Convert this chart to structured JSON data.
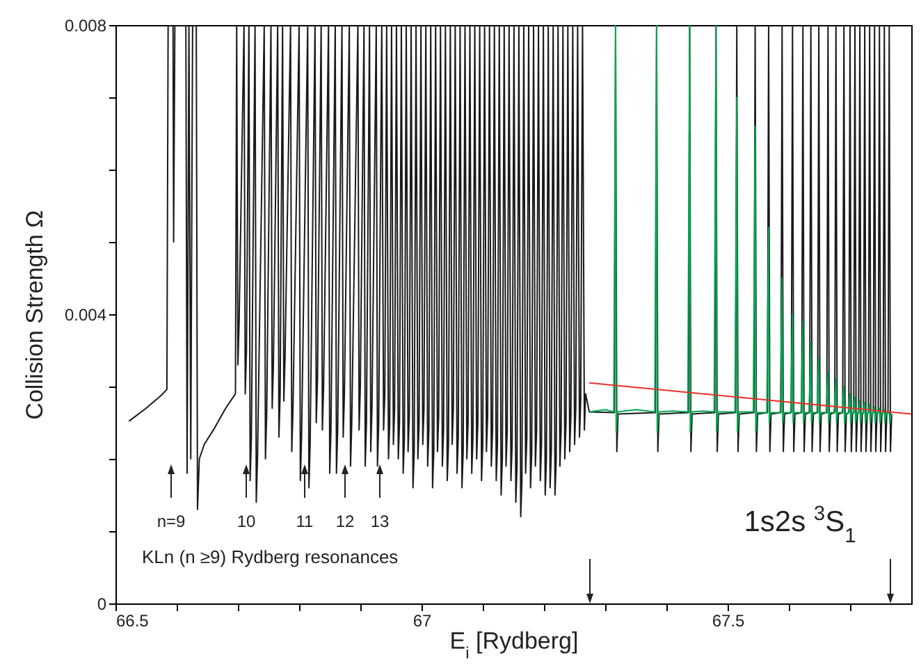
{
  "chart_data": {
    "type": "line",
    "xlabel": "E$_{i}$ [Rydberg]",
    "ylabel": "Collision Strength Ω",
    "xlim": [
      66.5,
      67.8
    ],
    "ylim": [
      0,
      0.008
    ],
    "xticks": [
      66.5,
      {
        "value": 66.6,
        "label": null
      },
      {
        "value": 66.7,
        "label": null
      },
      {
        "value": 66.8,
        "label": null
      },
      {
        "value": 66.9,
        "label": null
      },
      67,
      {
        "value": 67.1,
        "label": null
      },
      {
        "value": 67.2,
        "label": null
      },
      {
        "value": 67.3,
        "label": null
      },
      {
        "value": 67.4,
        "label": null
      },
      67.5,
      {
        "value": 67.6,
        "label": null
      },
      {
        "value": 67.7,
        "label": null
      }
    ],
    "yticks": [
      0,
      {
        "value": 0.001,
        "label": null
      },
      {
        "value": 0.002,
        "label": null
      },
      {
        "value": 0.003,
        "label": null
      },
      0.004,
      {
        "value": 0.005,
        "label": null
      },
      {
        "value": 0.006,
        "label": null
      },
      {
        "value": 0.007,
        "label": null
      },
      0.008
    ],
    "series": [
      {
        "color": "#1a1a1a",
        "x": [
          66.522,
          66.55,
          66.575,
          66.584,
          66.586,
          66.594,
          66.595,
          66.597,
          66.615,
          66.617,
          66.62,
          66.623,
          66.626,
          66.632,
          66.634,
          66.637,
          66.645,
          66.66,
          66.68,
          66.696,
          66.698,
          66.7,
          66.702,
          66.71,
          66.712,
          66.714,
          66.718,
          66.72,
          66.722,
          66.728,
          66.73,
          66.732,
          66.743,
          66.745,
          66.747,
          66.754,
          66.756,
          66.758,
          66.765,
          66.767,
          66.769,
          66.773,
          66.775,
          66.777,
          66.786,
          66.788,
          66.79,
          66.8,
          66.802,
          66.804,
          66.814,
          66.816,
          66.818,
          66.826,
          66.828,
          66.83,
          66.836,
          66.838,
          66.84,
          66.848,
          66.85,
          66.852,
          66.859,
          66.861,
          66.863,
          66.87,
          66.872,
          66.874,
          66.882,
          66.884,
          66.886,
          66.896,
          66.898,
          66.9,
          66.906,
          66.908,
          66.91,
          66.915,
          66.917,
          66.919,
          66.926,
          66.928,
          66.93,
          66.935,
          66.938,
          66.94,
          66.943,
          66.946,
          66.948,
          66.951,
          66.954,
          66.956,
          66.959,
          66.962,
          66.964,
          66.967,
          66.97,
          66.972,
          66.975,
          66.978,
          66.98,
          66.983,
          66.986,
          66.988,
          66.991,
          66.994,
          66.996,
          66.999,
          67.002,
          67.004,
          67.007,
          67.01,
          67.012,
          67.015,
          67.018,
          67.02,
          67.023,
          67.026,
          67.028,
          67.031,
          67.034,
          67.036,
          67.039,
          67.042,
          67.044,
          67.047,
          67.05,
          67.052,
          67.055,
          67.058,
          67.06,
          67.063,
          67.066,
          67.068,
          67.071,
          67.074,
          67.076,
          67.079,
          67.082,
          67.084,
          67.087,
          67.09,
          67.092,
          67.095,
          67.098,
          67.1,
          67.103,
          67.106,
          67.108,
          67.111,
          67.114,
          67.116,
          67.119,
          67.122,
          67.124,
          67.127,
          67.13,
          67.132,
          67.135,
          67.138,
          67.14,
          67.143,
          67.146,
          67.148,
          67.151,
          67.154,
          67.156,
          67.159,
          67.162,
          67.164,
          67.167,
          67.17,
          67.172,
          67.175,
          67.178,
          67.18,
          67.183,
          67.186,
          67.188,
          67.191,
          67.194,
          67.196,
          67.199,
          67.202,
          67.204,
          67.207,
          67.21,
          67.212,
          67.215,
          67.218,
          67.22,
          67.223,
          67.226,
          67.228,
          67.231,
          67.234,
          67.236,
          67.239,
          67.242,
          67.244,
          67.247,
          67.25,
          67.252,
          67.255,
          67.258,
          67.26,
          67.263,
          67.266,
          67.268,
          67.274,
          67.315,
          67.317,
          67.319,
          67.321,
          67.382,
          67.384,
          67.386,
          67.388,
          67.436,
          67.438,
          67.44,
          67.442,
          67.479,
          67.481,
          67.483,
          67.485,
          67.513,
          67.515,
          67.517,
          67.519,
          67.543,
          67.545,
          67.547,
          67.549,
          67.565,
          67.567,
          67.569,
          67.571,
          67.587,
          67.589,
          67.591,
          67.593,
          67.604,
          67.606,
          67.608,
          67.61,
          67.621,
          67.623,
          67.625,
          67.627,
          67.634,
          67.636,
          67.638,
          67.64,
          67.647,
          67.649,
          67.651,
          67.653,
          67.662,
          67.664,
          67.666,
          67.668,
          67.675,
          67.677,
          67.679,
          67.681,
          67.688,
          67.69,
          67.692,
          67.694,
          67.698,
          67.7,
          67.702,
          67.704,
          67.706,
          67.708,
          67.71,
          67.712,
          67.714,
          67.716,
          67.718,
          67.72,
          67.722,
          67.724,
          67.726,
          67.728,
          67.73,
          67.732,
          67.734,
          67.736,
          67.738,
          67.74,
          67.742,
          67.744,
          67.746,
          67.748,
          67.75,
          67.752,
          67.754,
          67.756,
          67.758,
          67.76,
          67.762,
          67.764,
          67.766,
          67.768
        ],
        "values": [
          0.00252,
          0.0027,
          0.00288,
          0.00296,
          0.008,
          0.008,
          0.005,
          0.008,
          0.008,
          0.0018,
          0.008,
          0.002,
          0.008,
          0.008,
          0.0013,
          0.002,
          0.0022,
          0.0024,
          0.0027,
          0.0029,
          0.008,
          0.0033,
          0.0039,
          0.008,
          0.0029,
          0.0035,
          0.008,
          0.0017,
          0.0023,
          0.008,
          0.0014,
          0.002,
          0.008,
          0.002,
          0.0026,
          0.008,
          0.0027,
          0.0033,
          0.008,
          0.0023,
          0.0029,
          0.008,
          0.0028,
          0.0034,
          0.008,
          0.0021,
          0.0027,
          0.008,
          0.0017,
          0.0023,
          0.008,
          0.0016,
          0.0022,
          0.008,
          0.0025,
          0.0031,
          0.008,
          0.0024,
          0.003,
          0.008,
          0.0018,
          0.0024,
          0.008,
          0.0018,
          0.0024,
          0.008,
          0.0023,
          0.0029,
          0.008,
          0.0019,
          0.0025,
          0.008,
          0.0024,
          0.003,
          0.008,
          0.0019,
          0.0025,
          0.008,
          0.0021,
          0.0027,
          0.008,
          0.0019,
          0.0025,
          0.008,
          0.0024,
          0.0029,
          0.008,
          0.002,
          0.0025,
          0.008,
          0.0022,
          0.0027,
          0.008,
          0.002,
          0.0025,
          0.008,
          0.0018,
          0.0023,
          0.008,
          0.0021,
          0.0026,
          0.008,
          0.0016,
          0.0021,
          0.008,
          0.002,
          0.0025,
          0.008,
          0.0022,
          0.0027,
          0.008,
          0.0019,
          0.0024,
          0.008,
          0.0016,
          0.0021,
          0.008,
          0.0021,
          0.0026,
          0.008,
          0.0019,
          0.0024,
          0.008,
          0.0017,
          0.0022,
          0.008,
          0.0022,
          0.0027,
          0.008,
          0.0018,
          0.0023,
          0.008,
          0.0016,
          0.0021,
          0.008,
          0.002,
          0.0025,
          0.008,
          0.0018,
          0.0023,
          0.008,
          0.002,
          0.0025,
          0.008,
          0.0017,
          0.0022,
          0.008,
          0.0021,
          0.0026,
          0.008,
          0.0019,
          0.0024,
          0.008,
          0.0017,
          0.0022,
          0.008,
          0.0015,
          0.002,
          0.008,
          0.0019,
          0.0024,
          0.008,
          0.0017,
          0.0022,
          0.008,
          0.0014,
          0.0019,
          0.008,
          0.0012,
          0.0017,
          0.008,
          0.0018,
          0.0023,
          0.008,
          0.0016,
          0.0021,
          0.008,
          0.0019,
          0.0024,
          0.008,
          0.0017,
          0.0022,
          0.008,
          0.0015,
          0.002,
          0.008,
          0.0016,
          0.0021,
          0.008,
          0.0015,
          0.002,
          0.008,
          0.0019,
          0.0024,
          0.008,
          0.002,
          0.0025,
          0.008,
          0.0021,
          0.0026,
          0.008,
          0.0022,
          0.0027,
          0.008,
          0.0023,
          0.0028,
          0.008,
          0.0024,
          0.0029,
          0.00265,
          0.00264,
          0.008,
          0.0021,
          0.00262,
          0.00264,
          0.008,
          0.0021,
          0.00262,
          0.00264,
          0.008,
          0.0021,
          0.00262,
          0.00264,
          0.008,
          0.0021,
          0.00262,
          0.00264,
          0.008,
          0.0021,
          0.00262,
          0.00264,
          0.008,
          0.0021,
          0.00262,
          0.00264,
          0.008,
          0.0021,
          0.00262,
          0.00264,
          0.008,
          0.0021,
          0.00262,
          0.00264,
          0.008,
          0.0021,
          0.00262,
          0.00264,
          0.008,
          0.0021,
          0.00262,
          0.00264,
          0.008,
          0.0021,
          0.00262,
          0.00264,
          0.008,
          0.0021,
          0.00262,
          0.00264,
          0.008,
          0.0021,
          0.00262,
          0.00264,
          0.008,
          0.0021,
          0.00262,
          0.00264,
          0.008,
          0.0021,
          0.00262,
          0.00264,
          0.008,
          0.0021,
          0.00262,
          0.00264,
          0.008,
          0.0021,
          0.00262,
          0.00264,
          0.008,
          0.0021,
          0.00262,
          0.00264,
          0.008,
          0.0021,
          0.00262,
          0.00264,
          0.008,
          0.0021,
          0.00262,
          0.00264,
          0.008,
          0.0021,
          0.00262,
          0.00264,
          0.008,
          0.0021,
          0.00262,
          0.00264,
          0.008,
          0.0021,
          0.00262,
          0.00264,
          0.008,
          0.0021,
          0.00262
        ]
      },
      {
        "color": "#00a651",
        "x": [
          67.274,
          67.3,
          67.314,
          67.317,
          67.318,
          67.32,
          67.35,
          67.381,
          67.384,
          67.385,
          67.387,
          67.41,
          67.435,
          67.438,
          67.439,
          67.441,
          67.46,
          67.478,
          67.481,
          67.482,
          67.484,
          67.512,
          67.515,
          67.516,
          67.518,
          67.542,
          67.545,
          67.546,
          67.548,
          67.564,
          67.567,
          67.568,
          67.57,
          67.586,
          67.589,
          67.59,
          67.592,
          67.603,
          67.606,
          67.607,
          67.609,
          67.62,
          67.623,
          67.624,
          67.626,
          67.633,
          67.636,
          67.637,
          67.639,
          67.646,
          67.649,
          67.65,
          67.652,
          67.661,
          67.664,
          67.665,
          67.667,
          67.674,
          67.677,
          67.678,
          67.68,
          67.687,
          67.69,
          67.691,
          67.693,
          67.697,
          67.7,
          67.701,
          67.703,
          67.705,
          67.708,
          67.709,
          67.711,
          67.713,
          67.716,
          67.717,
          67.719,
          67.721,
          67.724,
          67.725,
          67.727,
          67.729,
          67.732,
          67.733,
          67.735,
          67.737,
          67.74,
          67.741,
          67.743,
          67.745,
          67.748,
          67.749,
          67.751,
          67.753,
          67.756,
          67.757,
          67.759,
          67.761,
          67.764,
          67.765,
          67.767
        ],
        "values": [
          0.00265,
          0.00268,
          0.00265,
          0.008,
          0.00237,
          0.00265,
          0.00268,
          0.00265,
          0.008,
          0.00237,
          0.00265,
          0.00266,
          0.00265,
          0.008,
          0.00237,
          0.00265,
          0.00266,
          0.00265,
          0.008,
          0.00237,
          0.00265,
          0.00265,
          0.007,
          0.00237,
          0.00265,
          0.00265,
          0.0066,
          0.00237,
          0.00264,
          0.00264,
          0.0052,
          0.0025,
          0.00264,
          0.00264,
          0.0045,
          0.0025,
          0.00264,
          0.00264,
          0.004,
          0.0025,
          0.00264,
          0.00264,
          0.0039,
          0.0025,
          0.00264,
          0.00264,
          0.0036,
          0.0025,
          0.00264,
          0.00264,
          0.0034,
          0.0025,
          0.00264,
          0.00264,
          0.0032,
          0.0025,
          0.00264,
          0.00264,
          0.0031,
          0.0025,
          0.00264,
          0.00264,
          0.003,
          0.0025,
          0.00263,
          0.00263,
          0.0029,
          0.0025,
          0.00263,
          0.00263,
          0.00285,
          0.0025,
          0.00263,
          0.00263,
          0.0028,
          0.0025,
          0.00263,
          0.00263,
          0.00278,
          0.0025,
          0.00263,
          0.00263,
          0.00275,
          0.0025,
          0.00263,
          0.00263,
          0.00272,
          0.0025,
          0.00263,
          0.00263,
          0.0027,
          0.0025,
          0.00263,
          0.00263,
          0.00268,
          0.0025,
          0.00263,
          0.00263,
          0.00265,
          0.0025,
          0.00262
        ]
      },
      {
        "type": "line",
        "color": "#e8302a",
        "x": [
          67.274,
          67.8
        ],
        "values": [
          0.00305,
          0.00262
        ]
      }
    ],
    "annotations": [
      "n=9",
      "10",
      "11",
      "12",
      "13",
      "KLn (n ≥9) Rydberg resonances",
      "1s2s $^{3}$S$_{1}$"
    ]
  }
}
